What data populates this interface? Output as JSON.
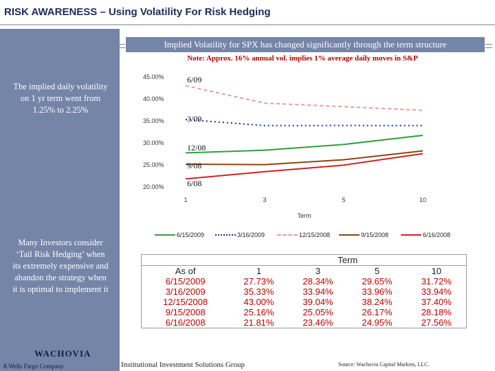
{
  "page": {
    "title": "RISK AWARENESS – Using Volatility For Risk Hedging",
    "banner": "Implied Volatility for SPX has changed significantly through the term structure",
    "note": "Note: Approx. 16% annual vol. implies 1% average daily moves in S&P",
    "side_text_top": "The implied daily volatility on 1 yr term went from 1.25% to 2.25%",
    "side_text_bottom": "Many Investors consider ‘Tail Risk Hedging’ when its extremely expensive and abandon the strategy when it is optimal to implement it",
    "logo": "WACHOVIA",
    "logo_sub": "A Wells Fargo Company",
    "footer_group": "Institutional Investment Solutions Group",
    "footer_source": "Source: Wachovia Capital Markets, LLC."
  },
  "colors": {
    "sidebar": "#7585a8",
    "banner": "#7585a8",
    "title": "#1d2b5c",
    "note": "#b00000",
    "table_values": "#c00000"
  },
  "chart_data": {
    "type": "line",
    "x": [
      1,
      3,
      5,
      10
    ],
    "x_tick_labels": [
      "1",
      "3",
      "5",
      "10"
    ],
    "xlabel": "Term",
    "ylabel": "",
    "ylim": [
      20,
      45
    ],
    "y_ticks": [
      20,
      25,
      30,
      35,
      40,
      45
    ],
    "y_tick_labels": [
      "20.00%",
      "25.00%",
      "30.00%",
      "35.00%",
      "40.00%",
      "45.00%"
    ],
    "grid": false,
    "legend_position": "bottom",
    "series": [
      {
        "name": "6/15/2009",
        "values": [
          27.73,
          28.34,
          29.65,
          31.72
        ],
        "color": "#2e9e3e",
        "style": "solid",
        "tag": "6/09"
      },
      {
        "name": "3/16/2009",
        "values": [
          35.33,
          33.94,
          33.96,
          33.94
        ],
        "color": "#1a2a9a",
        "style": "dotted",
        "tag": "3/09"
      },
      {
        "name": "12/15/2008",
        "values": [
          43.0,
          39.04,
          38.24,
          37.4
        ],
        "color": "#e79b9b",
        "style": "dashed",
        "tag": "12/08"
      },
      {
        "name": "9/15/2008",
        "values": [
          25.16,
          25.05,
          26.17,
          28.18
        ],
        "color": "#8b4513",
        "style": "solid",
        "tag": "9/08"
      },
      {
        "name": "6/16/2008",
        "values": [
          21.81,
          23.46,
          24.95,
          27.56
        ],
        "color": "#d42020",
        "style": "solid",
        "tag": "6/08"
      }
    ]
  },
  "table": {
    "term_header": "Term",
    "asof_header": "As of",
    "columns": [
      "1",
      "3",
      "5",
      "10"
    ],
    "rows": [
      {
        "date": "6/15/2009",
        "values": [
          "27.73%",
          "28.34%",
          "29.65%",
          "31.72%"
        ]
      },
      {
        "date": "3/16/2009",
        "values": [
          "35.33%",
          "33.94%",
          "33.96%",
          "33.94%"
        ]
      },
      {
        "date": "12/15/2008",
        "values": [
          "43.00%",
          "39.04%",
          "38.24%",
          "37.40%"
        ]
      },
      {
        "date": "9/15/2008",
        "values": [
          "25.16%",
          "25.05%",
          "26.17%",
          "28.18%"
        ]
      },
      {
        "date": "6/16/2008",
        "values": [
          "21.81%",
          "23.46%",
          "24.95%",
          "27.56%"
        ]
      }
    ]
  }
}
